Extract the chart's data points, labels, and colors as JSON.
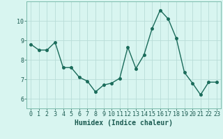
{
  "x": [
    0,
    1,
    2,
    3,
    4,
    5,
    6,
    7,
    8,
    9,
    10,
    11,
    12,
    13,
    14,
    15,
    16,
    17,
    18,
    19,
    20,
    21,
    22,
    23
  ],
  "y": [
    8.8,
    8.5,
    8.5,
    8.9,
    7.6,
    7.6,
    7.1,
    6.9,
    6.35,
    6.7,
    6.8,
    7.05,
    8.65,
    7.55,
    8.25,
    9.6,
    10.55,
    10.1,
    9.1,
    7.35,
    6.8,
    6.2,
    6.85,
    6.85
  ],
  "line_color": "#1a6b5a",
  "marker": "o",
  "markersize": 2.5,
  "linewidth": 1.0,
  "bg_color": "#d8f5f0",
  "grid_color": "#b8ddd8",
  "xlabel": "Humidex (Indice chaleur)",
  "xlabel_fontsize": 7,
  "tick_fontsize": 6,
  "ylim": [
    5.5,
    11.0
  ],
  "yticks": [
    6,
    7,
    8,
    9,
    10
  ],
  "xticks": [
    0,
    1,
    2,
    3,
    4,
    5,
    6,
    7,
    8,
    9,
    10,
    11,
    12,
    13,
    14,
    15,
    16,
    17,
    18,
    19,
    20,
    21,
    22,
    23
  ]
}
